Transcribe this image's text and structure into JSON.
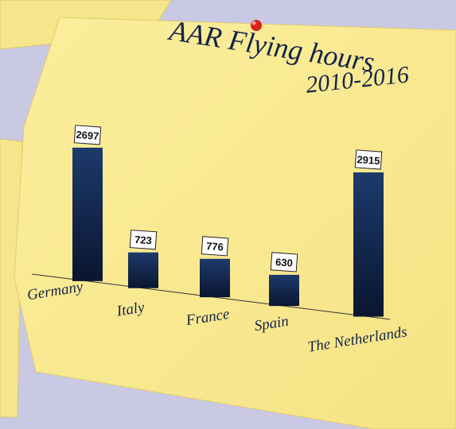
{
  "chart_data": {
    "type": "bar",
    "title": "AAR Flying hours",
    "subtitle": "2010-2016",
    "categories": [
      "Germany",
      "Italy",
      "France",
      "Spain",
      "The Netherlands"
    ],
    "values": [
      2697,
      723,
      776,
      630,
      2915
    ],
    "color": "#12264d"
  }
}
